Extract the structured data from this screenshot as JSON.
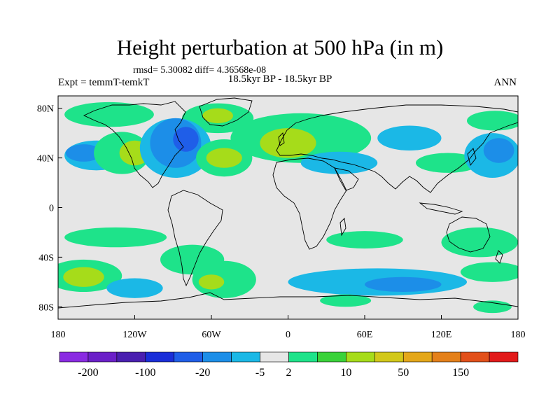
{
  "title": "Height perturbation at 500 hPa (in m)",
  "stats": "rmsd= 5.30082 diff= 4.36568e-08",
  "left_label": "Expt = temmT-temkT",
  "center_label": "18.5kyr BP - 18.5kyr BP",
  "right_label": "ANN",
  "y_ticks": [
    {
      "label": "80N",
      "lat": 80
    },
    {
      "label": "40N",
      "lat": 40
    },
    {
      "label": "0",
      "lat": 0
    },
    {
      "label": "40S",
      "lat": -40
    },
    {
      "label": "80S",
      "lat": -80
    }
  ],
  "x_ticks": [
    {
      "label": "180",
      "lon": -180
    },
    {
      "label": "120W",
      "lon": -120
    },
    {
      "label": "60W",
      "lon": -60
    },
    {
      "label": "0",
      "lon": 0
    },
    {
      "label": "60E",
      "lon": 60
    },
    {
      "label": "120E",
      "lon": 120
    },
    {
      "label": "180",
      "lon": 180
    }
  ],
  "colorbar": {
    "colors": [
      "#8a2be2",
      "#6b20c8",
      "#4a1fb0",
      "#1a2ed8",
      "#1f5ee8",
      "#1c8ee8",
      "#1bb8e6",
      "#e6e6e6",
      "#1ee38a",
      "#3ad23a",
      "#a6dc1a",
      "#d2c81a",
      "#e4a71a",
      "#e4801a",
      "#e2501a",
      "#e21a1a"
    ],
    "labels": [
      "-200",
      "-100",
      "-20",
      "-5",
      "2",
      "10",
      "50",
      "150"
    ],
    "label_after_index": [
      1,
      3,
      5,
      7,
      8,
      10,
      12,
      14
    ]
  },
  "anomaly_regions": [
    {
      "lon": -140,
      "lat": 75,
      "rx": 35,
      "ry": 10,
      "color": "#1ee38a"
    },
    {
      "lon": -55,
      "lat": 72,
      "rx": 28,
      "ry": 12,
      "color": "#1ee38a"
    },
    {
      "lon": -55,
      "lat": 74,
      "rx": 12,
      "ry": 6,
      "color": "#a6dc1a"
    },
    {
      "lon": -150,
      "lat": 42,
      "rx": 25,
      "ry": 12,
      "color": "#1bb8e6"
    },
    {
      "lon": -160,
      "lat": 44,
      "rx": 14,
      "ry": 7,
      "color": "#1c8ee8"
    },
    {
      "lon": -130,
      "lat": 44,
      "rx": 22,
      "ry": 17,
      "color": "#1ee38a"
    },
    {
      "lon": -120,
      "lat": 44,
      "rx": 12,
      "ry": 10,
      "color": "#a6dc1a"
    },
    {
      "lon": -88,
      "lat": 48,
      "rx": 28,
      "ry": 24,
      "color": "#1bb8e6"
    },
    {
      "lon": -88,
      "lat": 52,
      "rx": 20,
      "ry": 20,
      "color": "#1c8ee8"
    },
    {
      "lon": -80,
      "lat": 55,
      "rx": 10,
      "ry": 10,
      "color": "#1f5ee8"
    },
    {
      "lon": -50,
      "lat": 40,
      "rx": 22,
      "ry": 15,
      "color": "#1ee38a"
    },
    {
      "lon": -50,
      "lat": 40,
      "rx": 14,
      "ry": 8,
      "color": "#a6dc1a"
    },
    {
      "lon": 10,
      "lat": 56,
      "rx": 55,
      "ry": 20,
      "color": "#1ee38a"
    },
    {
      "lon": 0,
      "lat": 52,
      "rx": 22,
      "ry": 12,
      "color": "#a6dc1a"
    },
    {
      "lon": 40,
      "lat": 36,
      "rx": 30,
      "ry": 9,
      "color": "#1bb8e6"
    },
    {
      "lon": 95,
      "lat": 56,
      "rx": 25,
      "ry": 10,
      "color": "#1bb8e6"
    },
    {
      "lon": 125,
      "lat": 36,
      "rx": 25,
      "ry": 8,
      "color": "#1ee38a"
    },
    {
      "lon": 160,
      "lat": 42,
      "rx": 22,
      "ry": 18,
      "color": "#1bb8e6"
    },
    {
      "lon": 165,
      "lat": 46,
      "rx": 12,
      "ry": 10,
      "color": "#1c8ee8"
    },
    {
      "lon": 162,
      "lat": 70,
      "rx": 22,
      "ry": 8,
      "color": "#1ee38a"
    },
    {
      "lon": -135,
      "lat": -24,
      "rx": 40,
      "ry": 8,
      "color": "#1ee38a"
    },
    {
      "lon": -75,
      "lat": -42,
      "rx": 25,
      "ry": 12,
      "color": "#1ee38a"
    },
    {
      "lon": -160,
      "lat": -55,
      "rx": 30,
      "ry": 13,
      "color": "#1ee38a"
    },
    {
      "lon": -160,
      "lat": -56,
      "rx": 16,
      "ry": 8,
      "color": "#a6dc1a"
    },
    {
      "lon": -50,
      "lat": -58,
      "rx": 25,
      "ry": 15,
      "color": "#1ee38a"
    },
    {
      "lon": -60,
      "lat": -60,
      "rx": 10,
      "ry": 6,
      "color": "#a6dc1a"
    },
    {
      "lon": -120,
      "lat": -65,
      "rx": 22,
      "ry": 8,
      "color": "#1bb8e6"
    },
    {
      "lon": 70,
      "lat": -60,
      "rx": 70,
      "ry": 11,
      "color": "#1bb8e6"
    },
    {
      "lon": 90,
      "lat": -62,
      "rx": 30,
      "ry": 6,
      "color": "#1c8ee8"
    },
    {
      "lon": 60,
      "lat": -26,
      "rx": 30,
      "ry": 7,
      "color": "#1ee38a"
    },
    {
      "lon": 150,
      "lat": -28,
      "rx": 30,
      "ry": 12,
      "color": "#1ee38a"
    },
    {
      "lon": 160,
      "lat": -52,
      "rx": 25,
      "ry": 8,
      "color": "#1ee38a"
    },
    {
      "lon": 45,
      "lat": -75,
      "rx": 20,
      "ry": 5,
      "color": "#1ee38a"
    },
    {
      "lon": 160,
      "lat": -80,
      "rx": 15,
      "ry": 5,
      "color": "#1ee38a"
    }
  ]
}
